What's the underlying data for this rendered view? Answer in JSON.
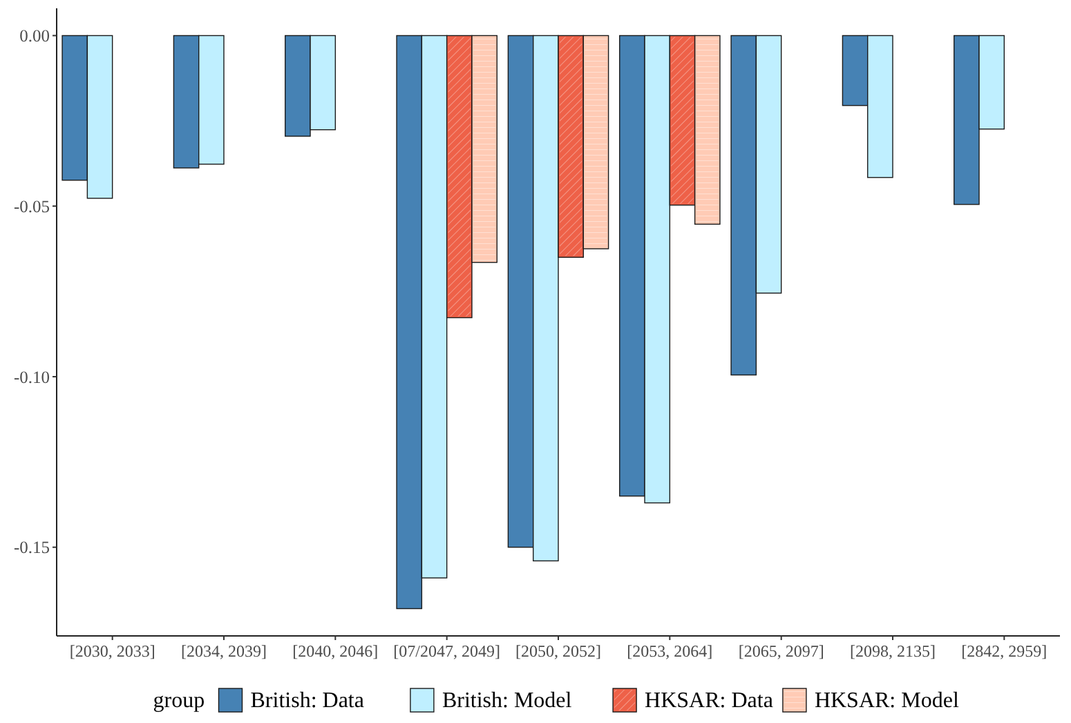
{
  "chart_data": {
    "type": "bar",
    "legend_title": "group",
    "legend": "bottom",
    "grid": false,
    "categories": [
      "[2030, 2033]",
      "[2034, 2039]",
      "[2040, 2046]",
      "[07/2047, 2049]",
      "[2050, 2052]",
      "[2053, 2064]",
      "[2065, 2097]",
      "[2098, 2135]",
      "[2842, 2959]"
    ],
    "ylim": [
      -0.176,
      0.008
    ],
    "yticks": [
      {
        "value": 0,
        "label": "0.00"
      },
      {
        "value": -0.05,
        "label": "-0.05"
      },
      {
        "value": -0.1,
        "label": "-0.10"
      },
      {
        "value": -0.15,
        "label": "-0.15"
      }
    ],
    "series": [
      {
        "name": "British: Data",
        "color": "#4682b4",
        "values": [
          -0.0424,
          -0.0388,
          -0.0295,
          -0.168,
          -0.15,
          -0.135,
          -0.0995,
          -0.0205,
          -0.0495
        ]
      },
      {
        "name": "British: Model",
        "color": "#bfefff",
        "values": [
          -0.0477,
          -0.0377,
          -0.0276,
          -0.159,
          -0.154,
          -0.137,
          -0.0755,
          -0.0416,
          -0.0274
        ]
      },
      {
        "name": "HKSAR: Data",
        "color": "#ee6148",
        "values": [
          0,
          0,
          0,
          -0.0827,
          -0.065,
          -0.0497,
          0,
          0,
          0
        ]
      },
      {
        "name": "HKSAR: Model",
        "color": "#ffcbb5",
        "values": [
          0,
          0,
          0,
          -0.0665,
          -0.0625,
          -0.0553,
          0,
          0,
          0
        ]
      }
    ]
  }
}
